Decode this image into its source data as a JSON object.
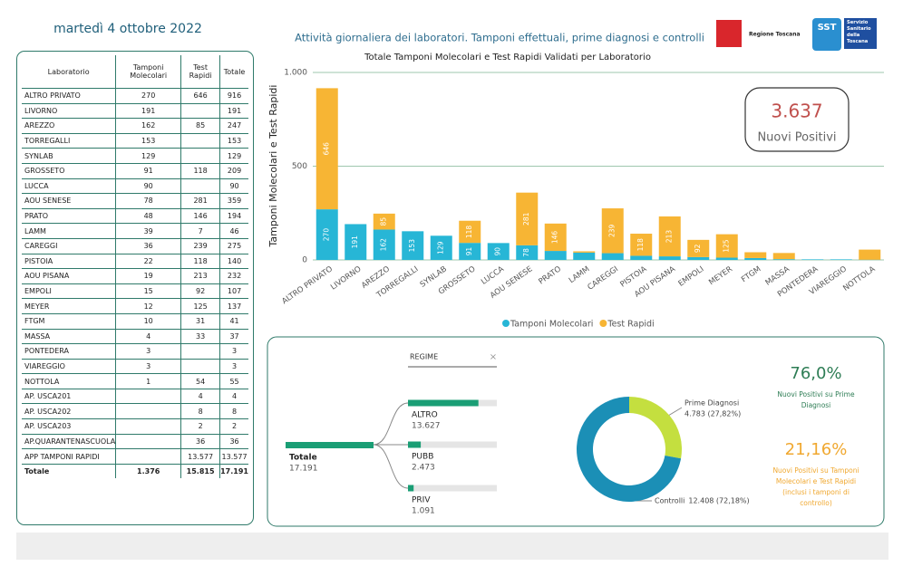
{
  "header": {
    "date": "martedì 4 ottobre 2022",
    "title": "Attività giornaliera dei laboratori. Tamponi effettuali, prime diagnosi e controlli",
    "logo_left": "Regione Toscana",
    "logo_right_short": "SST",
    "logo_right": "Servizio Sanitario della Toscana"
  },
  "table": {
    "columns": [
      "Laboratorio",
      "Tamponi Molecolari",
      "Test Rapidi",
      "Totale"
    ],
    "rows": [
      [
        "ALTRO PRIVATO",
        270,
        646,
        916
      ],
      [
        "LIVORNO",
        191,
        null,
        191
      ],
      [
        "AREZZO",
        162,
        85,
        247
      ],
      [
        "TORREGALLI",
        153,
        null,
        153
      ],
      [
        "SYNLAB",
        129,
        null,
        129
      ],
      [
        "GROSSETO",
        91,
        118,
        209
      ],
      [
        "LUCCA",
        90,
        null,
        90
      ],
      [
        "AOU SENESE",
        78,
        281,
        359
      ],
      [
        "PRATO",
        48,
        146,
        194
      ],
      [
        "LAMM",
        39,
        7,
        46
      ],
      [
        "CAREGGI",
        36,
        239,
        275
      ],
      [
        "PISTOIA",
        22,
        118,
        140
      ],
      [
        "AOU PISANA",
        19,
        213,
        232
      ],
      [
        "EMPOLI",
        15,
        92,
        107
      ],
      [
        "MEYER",
        12,
        125,
        137
      ],
      [
        "FTGM",
        10,
        31,
        41
      ],
      [
        "MASSA",
        4,
        33,
        37
      ],
      [
        "PONTEDERA",
        3,
        null,
        3
      ],
      [
        "VIAREGGIO",
        3,
        null,
        3
      ],
      [
        "NOTTOLA",
        1,
        54,
        55
      ],
      [
        "AP. USCA201",
        null,
        4,
        4
      ],
      [
        "AP. USCA202",
        null,
        8,
        8
      ],
      [
        "AP. USCA203",
        null,
        2,
        2
      ],
      [
        "AP.QUARANTENASCUOLA",
        null,
        36,
        36
      ],
      [
        "APP TAMPONI RAPIDI",
        null,
        "13.577",
        "13.577"
      ]
    ],
    "total": [
      "Totale",
      "1.376",
      "15.815",
      "17.191"
    ]
  },
  "chart_data": [
    {
      "type": "bar",
      "stacked": true,
      "title": "Totale Tamponi Molecolari e Test Rapidi Validati per Laboratorio",
      "y_label": "Tamponi Molecolari e Test Rapidi",
      "categories": [
        "ALTRO PRIVATO",
        "LIVORNO",
        "AREZZO",
        "TORREGALLI",
        "SYNLAB",
        "GROSSETO",
        "LUCCA",
        "AOU SENESE",
        "PRATO",
        "LAMM",
        "CAREGGI",
        "PISTOIA",
        "AOU PISANA",
        "EMPOLI",
        "MEYER",
        "FTGM",
        "MASSA",
        "PONTEDERA",
        "VIAREGGIO",
        "NOTTOLA"
      ],
      "series": [
        {
          "name": "Tamponi Molecolari",
          "color": "#27b6d6",
          "values": [
            270,
            191,
            162,
            153,
            129,
            91,
            90,
            78,
            48,
            39,
            36,
            22,
            19,
            15,
            12,
            10,
            4,
            3,
            3,
            1
          ]
        },
        {
          "name": "Test Rapidi",
          "color": "#f7b534",
          "values": [
            646,
            null,
            85,
            null,
            null,
            118,
            null,
            281,
            146,
            7,
            239,
            118,
            213,
            92,
            125,
            31,
            33,
            null,
            null,
            54
          ]
        }
      ],
      "ylim": [
        0,
        1000
      ],
      "yticks": [
        0,
        500,
        {
          "value": 1000,
          "label": "1.000"
        }
      ],
      "grid": true,
      "legend": "bottom"
    },
    {
      "type": "pie",
      "donut": true,
      "categories": [
        "Prime Diagnosi",
        "Controlli"
      ],
      "values": [
        4783,
        12408
      ],
      "value_labels": [
        "4.783 (27,82%)",
        "12.408 (72,18%)"
      ],
      "colors": [
        "#c4df3f",
        "#1b8fb6"
      ]
    }
  ],
  "kpi": {
    "value": "3.637",
    "label": "Nuovi Positivi"
  },
  "decomposition": {
    "title": "REGIME",
    "root_label": "Totale",
    "root_value": 17191,
    "root_value_label": "17.191",
    "categories": [
      "ALTRO",
      "PUBB",
      "PRIV"
    ],
    "values": [
      13627,
      2473,
      1091
    ],
    "value_labels": [
      "13.627",
      "2.473",
      "1.091"
    ]
  },
  "ratios": [
    {
      "value": "76,0%",
      "label": "Nuovi Positivi su Prime Diagnosi"
    },
    {
      "value": "21,16%",
      "label": "Nuovi Positivi su Tamponi Molecolari e Test Rapidi (inclusi i tamponi di controllo)"
    }
  ]
}
